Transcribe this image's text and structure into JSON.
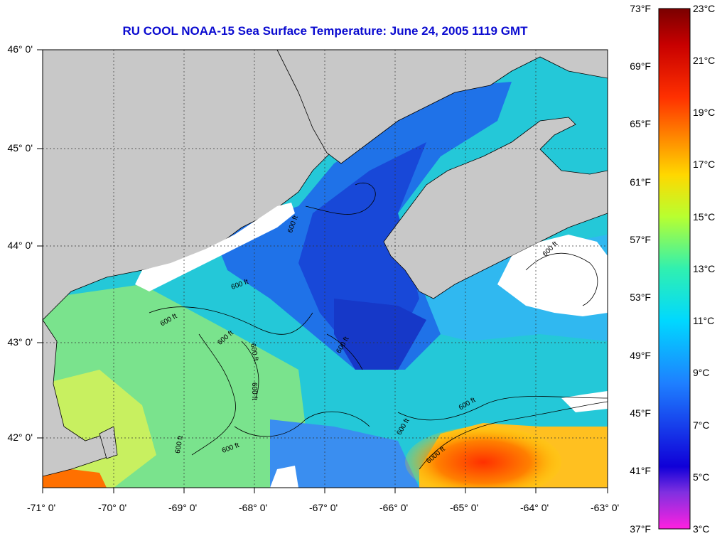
{
  "title": "RU COOL  NOAA-15  Sea Surface Temperature:  June 24, 2005 1119 GMT",
  "lat_labels": [
    "46° 0'",
    "45° 0'",
    "44° 0'",
    "43° 0'",
    "42° 0'"
  ],
  "lon_labels": [
    "-71° 0'",
    "-70° 0'",
    "-69° 0'",
    "-68° 0'",
    "-67° 0'",
    "-66° 0'",
    "-65° 0'",
    "-64° 0'",
    "-63° 0'"
  ],
  "colorbar": {
    "f_labels": [
      "73°F",
      "69°F",
      "65°F",
      "61°F",
      "57°F",
      "53°F",
      "49°F",
      "45°F",
      "41°F",
      "37°F"
    ],
    "c_labels": [
      "23°C",
      "21°C",
      "19°C",
      "17°C",
      "15°C",
      "13°C",
      "11°C",
      "9°C",
      "7°C",
      "5°C",
      "3°C"
    ]
  },
  "contour_labels": [
    "600 ft",
    "600 ft",
    "600 ft",
    "600 ft",
    "600 ft",
    "600 ft",
    "600 ft",
    "600 ft",
    "600 ft",
    "600 ft",
    "6000 ft",
    "600 ft",
    "600 ft"
  ],
  "colors": {
    "title": "#0a0ad0",
    "land": "#c8c8c8",
    "cloud": "#ffffff",
    "cold_water": "#1a4de0",
    "mid_water": "#2ad0e0",
    "warm_water": "#ff5a00"
  }
}
